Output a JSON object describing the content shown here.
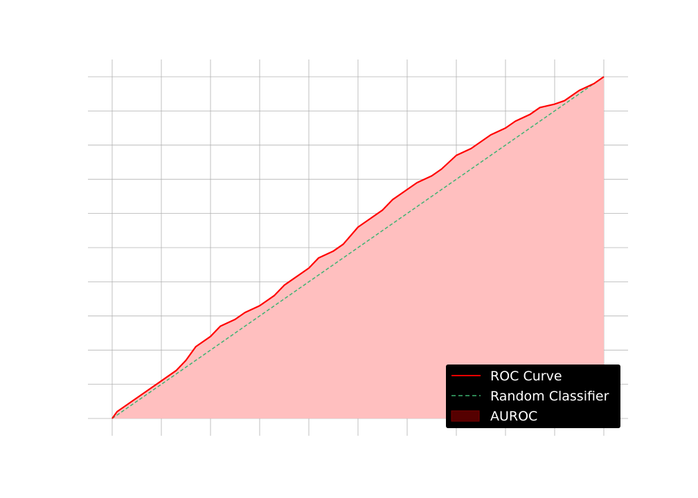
{
  "chart_data": {
    "type": "line",
    "title": "",
    "xlabel": "",
    "ylabel": "",
    "xlim": [
      0,
      1
    ],
    "ylim": [
      0,
      1
    ],
    "grid": true,
    "x_ticks": [
      0.0,
      0.1,
      0.2,
      0.3,
      0.4,
      0.5,
      0.6,
      0.7,
      0.8,
      0.9,
      1.0
    ],
    "y_ticks": [
      0.0,
      0.1,
      0.2,
      0.3,
      0.4,
      0.5,
      0.6,
      0.7,
      0.8,
      0.9,
      1.0
    ],
    "legend_position": "lower-right",
    "series": [
      {
        "name": "ROC Curve",
        "style": "solid",
        "color": "#ff0000",
        "x": [
          0.0,
          0.01,
          0.03,
          0.05,
          0.07,
          0.1,
          0.13,
          0.15,
          0.17,
          0.2,
          0.22,
          0.25,
          0.27,
          0.3,
          0.33,
          0.35,
          0.37,
          0.4,
          0.42,
          0.45,
          0.47,
          0.5,
          0.52,
          0.55,
          0.57,
          0.6,
          0.62,
          0.65,
          0.67,
          0.7,
          0.73,
          0.75,
          0.77,
          0.8,
          0.82,
          0.85,
          0.87,
          0.9,
          0.92,
          0.95,
          0.98,
          1.0
        ],
        "y": [
          0.0,
          0.02,
          0.04,
          0.06,
          0.08,
          0.11,
          0.14,
          0.17,
          0.21,
          0.24,
          0.27,
          0.29,
          0.31,
          0.33,
          0.36,
          0.39,
          0.41,
          0.44,
          0.47,
          0.49,
          0.51,
          0.56,
          0.58,
          0.61,
          0.64,
          0.67,
          0.69,
          0.71,
          0.73,
          0.77,
          0.79,
          0.81,
          0.83,
          0.85,
          0.87,
          0.89,
          0.91,
          0.92,
          0.93,
          0.96,
          0.98,
          1.0
        ]
      },
      {
        "name": "Random Classifier",
        "style": "dashed",
        "color": "#3cb371",
        "x": [
          0.0,
          1.0
        ],
        "y": [
          0.0,
          1.0
        ]
      }
    ],
    "fill": {
      "name": "AUROC",
      "under_series": "ROC Curve",
      "color": "#ffbfbf",
      "legend_color": "#550000"
    }
  },
  "legend": {
    "background": "#000000",
    "items": [
      {
        "label": "ROC Curve",
        "kind": "line-solid",
        "color": "#ff0000"
      },
      {
        "label": "Random Classifier",
        "kind": "line-dashed",
        "color": "#3cb371"
      },
      {
        "label": "AUROC",
        "kind": "patch",
        "color": "#550000"
      }
    ]
  }
}
